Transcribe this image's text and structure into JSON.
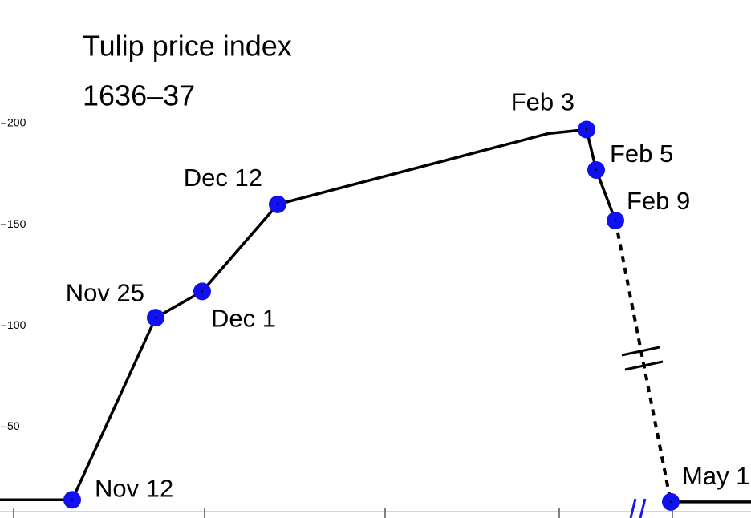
{
  "chart_data": {
    "type": "line",
    "title": "Tulip price index",
    "subtitle": "1636–37",
    "categories": [
      "Nov 12",
      "Nov 25",
      "Dec 1",
      "Dec 12",
      null,
      "Feb 3",
      "Feb 5",
      "Feb 9",
      "May 1"
    ],
    "values": [
      14,
      104,
      117,
      160,
      195,
      197,
      177,
      152,
      13
    ],
    "color": "#000000",
    "marker_color": "#1010f0",
    "ylim": [
      5,
      261
    ],
    "yticks": [
      50,
      100,
      150,
      200
    ]
  }
}
